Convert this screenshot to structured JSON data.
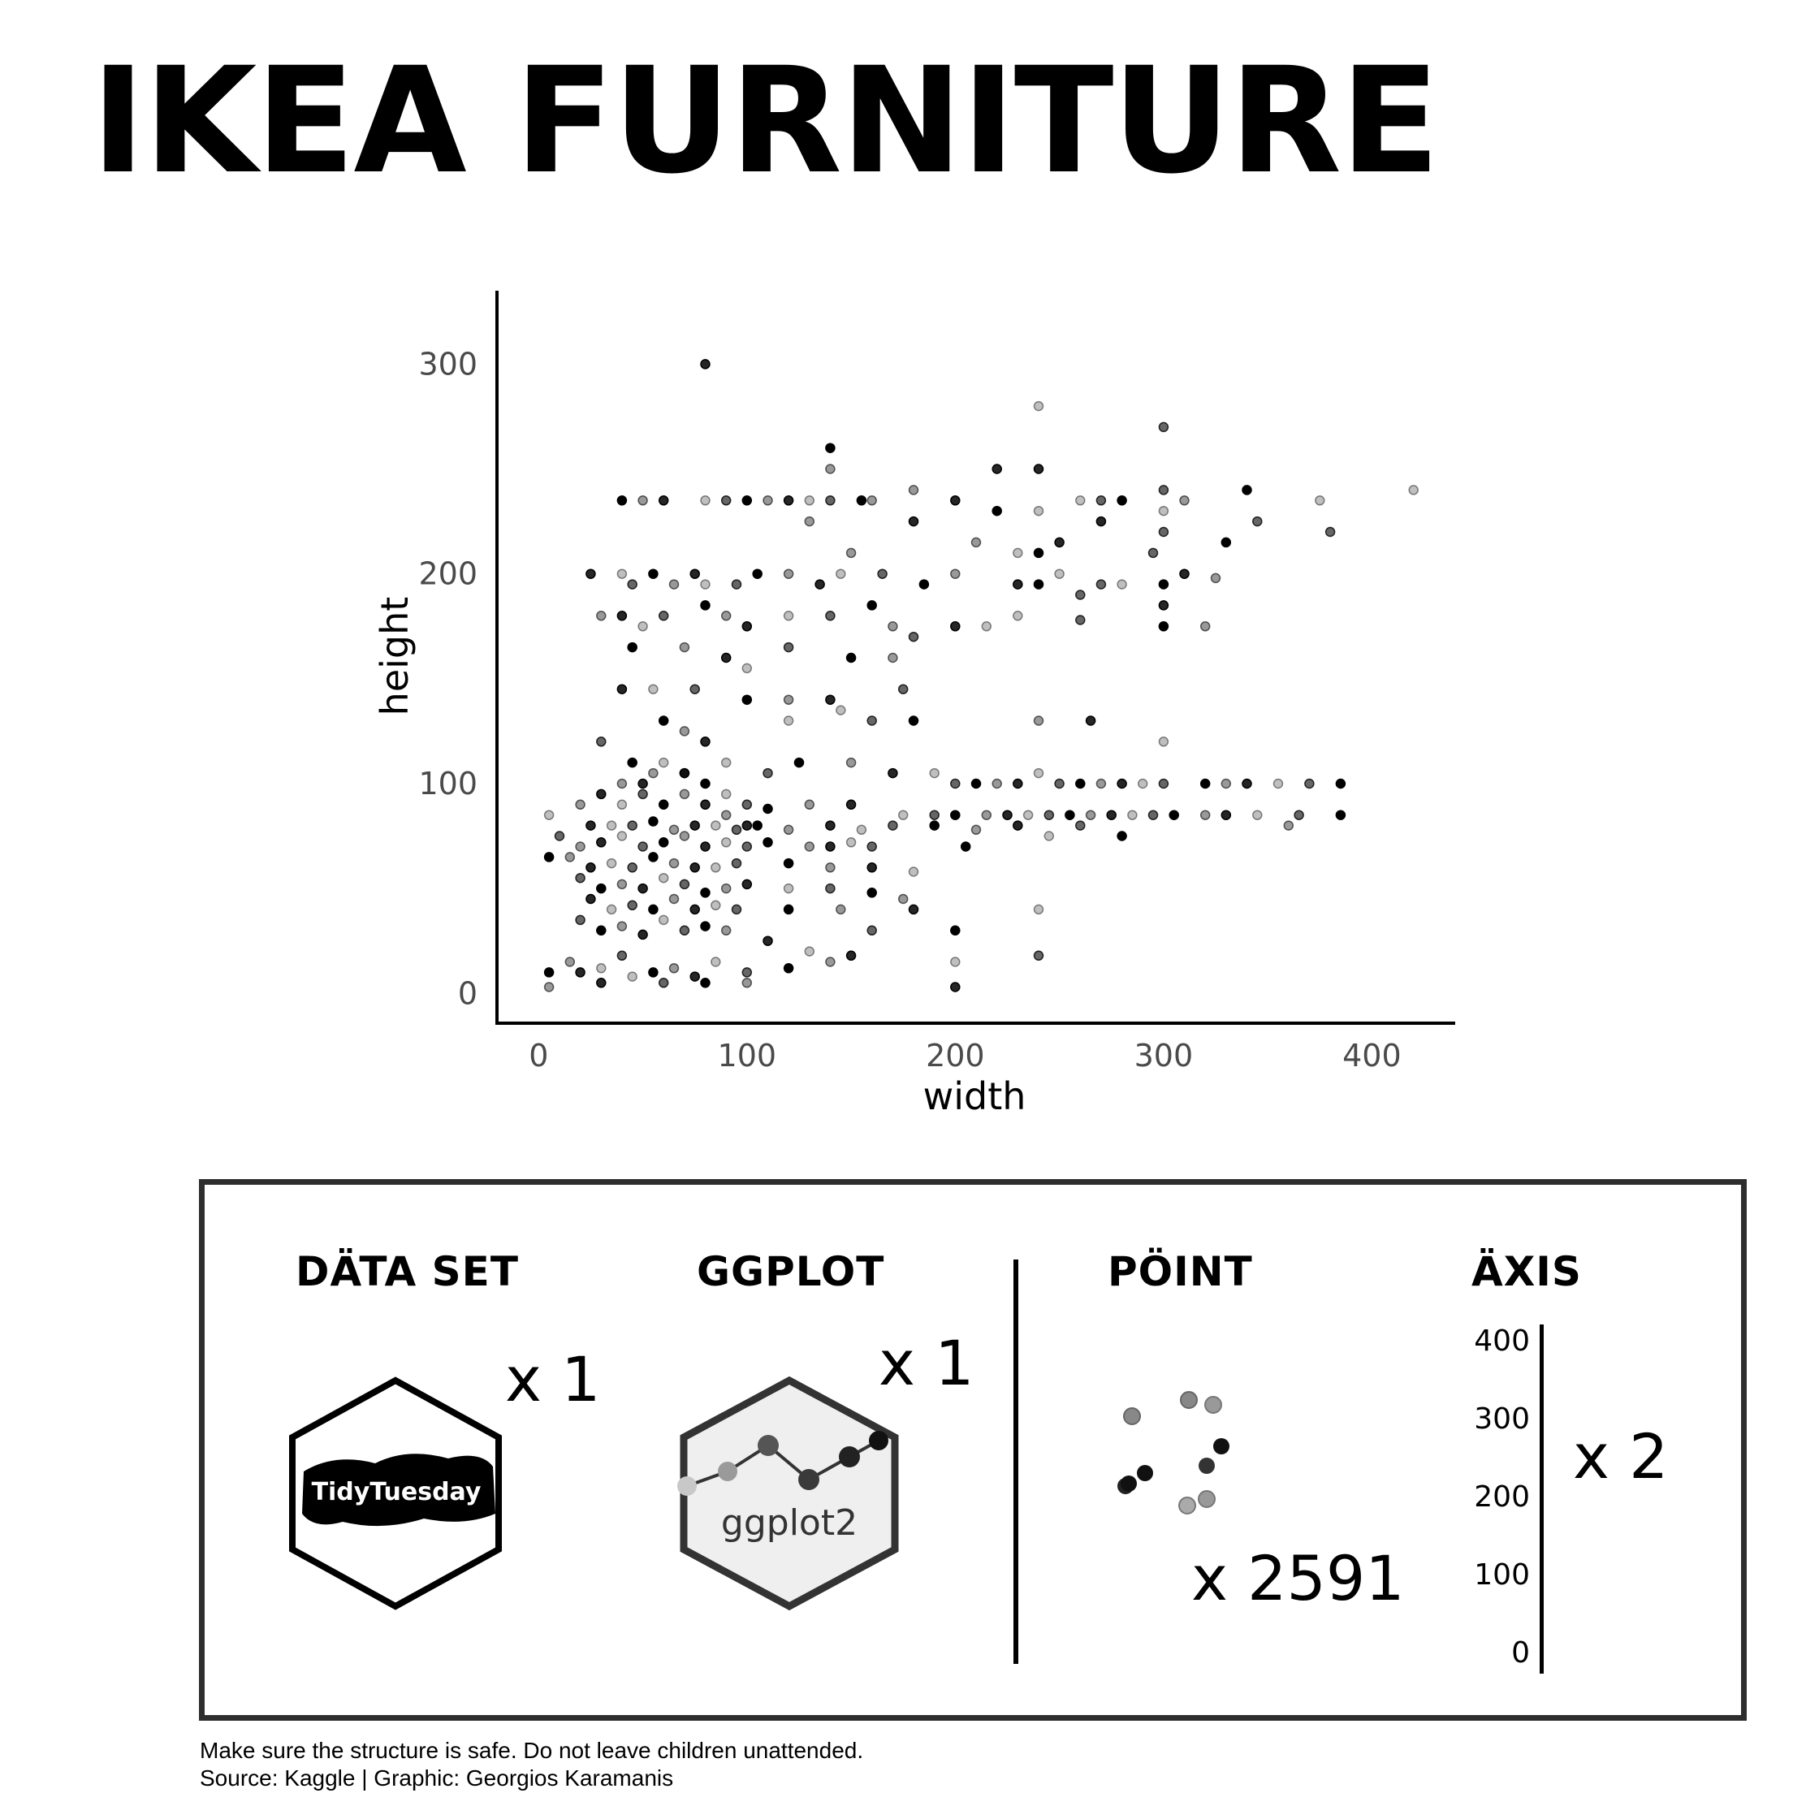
{
  "title": "IKEA FURNITURE",
  "chart_data": {
    "type": "scatter",
    "xlabel": "width",
    "ylabel": "height",
    "xlim": [
      -20,
      440
    ],
    "ylim": [
      -15,
      335
    ],
    "x_ticks": [
      "0",
      "100",
      "200",
      "300",
      "400"
    ],
    "y_ticks": [
      "0",
      "100",
      "200",
      "300"
    ],
    "grid": false,
    "points": [
      [
        80,
        300
      ],
      [
        240,
        280
      ],
      [
        300,
        270
      ],
      [
        140,
        260
      ],
      [
        140,
        250
      ],
      [
        240,
        250
      ],
      [
        420,
        240
      ],
      [
        300,
        240
      ],
      [
        340,
        240
      ],
      [
        180,
        240
      ],
      [
        220,
        250
      ],
      [
        375,
        235
      ],
      [
        380,
        220
      ],
      [
        40,
        235
      ],
      [
        50,
        235
      ],
      [
        60,
        235
      ],
      [
        80,
        235
      ],
      [
        90,
        235
      ],
      [
        100,
        235
      ],
      [
        110,
        235
      ],
      [
        120,
        235
      ],
      [
        130,
        235
      ],
      [
        140,
        235
      ],
      [
        155,
        235
      ],
      [
        160,
        235
      ],
      [
        200,
        235
      ],
      [
        260,
        235
      ],
      [
        270,
        235
      ],
      [
        280,
        235
      ],
      [
        310,
        235
      ],
      [
        180,
        225
      ],
      [
        240,
        230
      ],
      [
        345,
        225
      ],
      [
        220,
        230
      ],
      [
        130,
        225
      ],
      [
        270,
        225
      ],
      [
        300,
        230
      ],
      [
        300,
        220
      ],
      [
        330,
        215
      ],
      [
        210,
        215
      ],
      [
        250,
        215
      ],
      [
        230,
        210
      ],
      [
        295,
        210
      ],
      [
        240,
        210
      ],
      [
        150,
        210
      ],
      [
        25,
        200
      ],
      [
        40,
        200
      ],
      [
        45,
        195
      ],
      [
        55,
        200
      ],
      [
        65,
        195
      ],
      [
        75,
        200
      ],
      [
        80,
        195
      ],
      [
        95,
        195
      ],
      [
        105,
        200
      ],
      [
        120,
        200
      ],
      [
        135,
        195
      ],
      [
        145,
        200
      ],
      [
        165,
        200
      ],
      [
        185,
        195
      ],
      [
        200,
        200
      ],
      [
        230,
        195
      ],
      [
        250,
        200
      ],
      [
        270,
        195
      ],
      [
        300,
        195
      ],
      [
        325,
        198
      ],
      [
        310,
        200
      ],
      [
        280,
        195
      ],
      [
        260,
        190
      ],
      [
        240,
        195
      ],
      [
        30,
        180
      ],
      [
        40,
        180
      ],
      [
        50,
        175
      ],
      [
        60,
        180
      ],
      [
        80,
        185
      ],
      [
        90,
        180
      ],
      [
        100,
        175
      ],
      [
        120,
        180
      ],
      [
        140,
        180
      ],
      [
        160,
        185
      ],
      [
        170,
        175
      ],
      [
        200,
        175
      ],
      [
        230,
        180
      ],
      [
        260,
        178
      ],
      [
        300,
        175
      ],
      [
        320,
        175
      ],
      [
        300,
        185
      ],
      [
        215,
        175
      ],
      [
        180,
        170
      ],
      [
        45,
        165
      ],
      [
        70,
        165
      ],
      [
        90,
        160
      ],
      [
        100,
        155
      ],
      [
        120,
        165
      ],
      [
        150,
        160
      ],
      [
        170,
        160
      ],
      [
        40,
        145
      ],
      [
        55,
        145
      ],
      [
        75,
        145
      ],
      [
        100,
        140
      ],
      [
        120,
        140
      ],
      [
        140,
        140
      ],
      [
        145,
        135
      ],
      [
        175,
        145
      ],
      [
        60,
        130
      ],
      [
        70,
        125
      ],
      [
        80,
        120
      ],
      [
        120,
        130
      ],
      [
        160,
        130
      ],
      [
        180,
        130
      ],
      [
        240,
        130
      ],
      [
        265,
        130
      ],
      [
        300,
        120
      ],
      [
        30,
        120
      ],
      [
        45,
        110
      ],
      [
        55,
        105
      ],
      [
        70,
        105
      ],
      [
        90,
        110
      ],
      [
        110,
        105
      ],
      [
        125,
        110
      ],
      [
        150,
        110
      ],
      [
        170,
        105
      ],
      [
        190,
        105
      ],
      [
        200,
        100
      ],
      [
        210,
        100
      ],
      [
        220,
        100
      ],
      [
        230,
        100
      ],
      [
        240,
        105
      ],
      [
        250,
        100
      ],
      [
        260,
        100
      ],
      [
        270,
        100
      ],
      [
        280,
        100
      ],
      [
        290,
        100
      ],
      [
        300,
        100
      ],
      [
        320,
        100
      ],
      [
        330,
        100
      ],
      [
        340,
        100
      ],
      [
        355,
        100
      ],
      [
        370,
        100
      ],
      [
        385,
        100
      ],
      [
        20,
        90
      ],
      [
        30,
        95
      ],
      [
        40,
        90
      ],
      [
        50,
        95
      ],
      [
        60,
        90
      ],
      [
        70,
        95
      ],
      [
        80,
        90
      ],
      [
        90,
        95
      ],
      [
        100,
        90
      ],
      [
        110,
        88
      ],
      [
        130,
        90
      ],
      [
        150,
        90
      ],
      [
        175,
        85
      ],
      [
        190,
        85
      ],
      [
        200,
        85
      ],
      [
        215,
        85
      ],
      [
        225,
        85
      ],
      [
        235,
        85
      ],
      [
        245,
        85
      ],
      [
        255,
        85
      ],
      [
        265,
        85
      ],
      [
        275,
        85
      ],
      [
        285,
        85
      ],
      [
        295,
        85
      ],
      [
        305,
        85
      ],
      [
        320,
        85
      ],
      [
        330,
        85
      ],
      [
        345,
        85
      ],
      [
        365,
        85
      ],
      [
        385,
        85
      ],
      [
        360,
        80
      ],
      [
        25,
        80
      ],
      [
        35,
        80
      ],
      [
        45,
        80
      ],
      [
        55,
        82
      ],
      [
        65,
        78
      ],
      [
        75,
        80
      ],
      [
        85,
        80
      ],
      [
        95,
        78
      ],
      [
        105,
        80
      ],
      [
        120,
        78
      ],
      [
        140,
        80
      ],
      [
        155,
        78
      ],
      [
        170,
        80
      ],
      [
        190,
        80
      ],
      [
        210,
        78
      ],
      [
        230,
        80
      ],
      [
        245,
        75
      ],
      [
        260,
        80
      ],
      [
        280,
        75
      ],
      [
        20,
        70
      ],
      [
        30,
        72
      ],
      [
        40,
        75
      ],
      [
        50,
        70
      ],
      [
        60,
        72
      ],
      [
        70,
        75
      ],
      [
        80,
        70
      ],
      [
        90,
        72
      ],
      [
        100,
        70
      ],
      [
        110,
        72
      ],
      [
        130,
        70
      ],
      [
        140,
        70
      ],
      [
        150,
        72
      ],
      [
        160,
        70
      ],
      [
        205,
        70
      ],
      [
        15,
        65
      ],
      [
        25,
        60
      ],
      [
        35,
        62
      ],
      [
        45,
        60
      ],
      [
        55,
        65
      ],
      [
        65,
        62
      ],
      [
        75,
        60
      ],
      [
        85,
        60
      ],
      [
        95,
        62
      ],
      [
        120,
        62
      ],
      [
        140,
        60
      ],
      [
        160,
        60
      ],
      [
        180,
        58
      ],
      [
        20,
        55
      ],
      [
        30,
        50
      ],
      [
        40,
        52
      ],
      [
        50,
        50
      ],
      [
        60,
        55
      ],
      [
        70,
        52
      ],
      [
        80,
        48
      ],
      [
        90,
        50
      ],
      [
        100,
        52
      ],
      [
        120,
        50
      ],
      [
        140,
        50
      ],
      [
        160,
        48
      ],
      [
        175,
        45
      ],
      [
        25,
        45
      ],
      [
        35,
        40
      ],
      [
        45,
        42
      ],
      [
        55,
        40
      ],
      [
        65,
        45
      ],
      [
        75,
        40
      ],
      [
        85,
        42
      ],
      [
        95,
        40
      ],
      [
        120,
        40
      ],
      [
        145,
        40
      ],
      [
        180,
        40
      ],
      [
        240,
        40
      ],
      [
        20,
        35
      ],
      [
        30,
        30
      ],
      [
        40,
        32
      ],
      [
        50,
        28
      ],
      [
        60,
        35
      ],
      [
        70,
        30
      ],
      [
        80,
        32
      ],
      [
        90,
        30
      ],
      [
        110,
        25
      ],
      [
        130,
        20
      ],
      [
        160,
        30
      ],
      [
        200,
        30
      ],
      [
        15,
        15
      ],
      [
        20,
        10
      ],
      [
        30,
        12
      ],
      [
        40,
        18
      ],
      [
        55,
        10
      ],
      [
        65,
        12
      ],
      [
        75,
        8
      ],
      [
        85,
        15
      ],
      [
        100,
        10
      ],
      [
        120,
        12
      ],
      [
        140,
        15
      ],
      [
        150,
        18
      ],
      [
        200,
        15
      ],
      [
        240,
        18
      ],
      [
        5,
        10
      ],
      [
        5,
        3
      ],
      [
        30,
        5
      ],
      [
        45,
        8
      ],
      [
        60,
        5
      ],
      [
        80,
        5
      ],
      [
        100,
        5
      ],
      [
        200,
        3
      ],
      [
        5,
        85
      ],
      [
        10,
        75
      ],
      [
        5,
        65
      ],
      [
        40,
        100
      ],
      [
        50,
        100
      ],
      [
        60,
        110
      ],
      [
        70,
        105
      ],
      [
        80,
        100
      ],
      [
        90,
        85
      ],
      [
        100,
        80
      ]
    ],
    "annotations": []
  },
  "legend": {
    "items": [
      {
        "heading": "DÄTA SET",
        "multiplier": "x 1",
        "hex_text": "TidyTuesday"
      },
      {
        "heading": "GGPLOT",
        "multiplier": "x 1",
        "hex_text": "ggplot2"
      },
      {
        "heading": "PÖINT",
        "multiplier": "x 2591"
      },
      {
        "heading": "ÄXIS",
        "multiplier": "x 2",
        "axis_ticks": [
          "400",
          "300",
          "200",
          "100",
          "0"
        ]
      }
    ]
  },
  "footnote": {
    "line1": "Make sure the structure is safe. Do not leave children unattended.",
    "line2": "Source: Kaggle | Graphic: Georgios Karamanis"
  }
}
